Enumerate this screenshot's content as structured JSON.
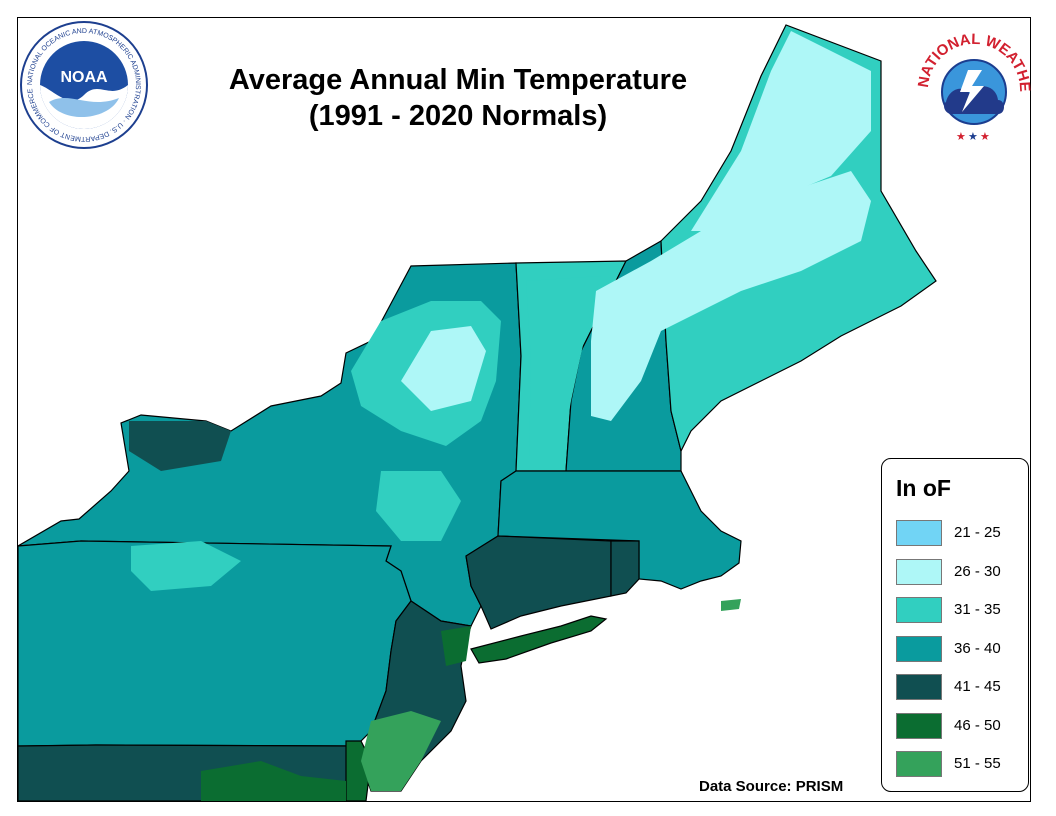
{
  "map": {
    "title_line1": "Average Annual Min Temperature",
    "title_line2": "(1991 - 2020 Normals)",
    "source": "Data Source: PRISM",
    "colors": {
      "ocean": "#ffffff",
      "borders": "#000000",
      "lakes": "#ffffff"
    }
  },
  "legend": {
    "title": "In",
    "unit": "oF",
    "items": [
      {
        "label": "21 - 25",
        "color": "#71d4f5"
      },
      {
        "label": "26 - 30",
        "color": "#aef7f7"
      },
      {
        "label": "31 - 35",
        "color": "#31cfc0"
      },
      {
        "label": "36 - 40",
        "color": "#0a9b9e"
      },
      {
        "label": "41 - 45",
        "color": "#104f51"
      },
      {
        "label": "46 - 50",
        "color": "#0b6d31"
      },
      {
        "label": "51 - 55",
        "color": "#34a25b"
      }
    ]
  },
  "logos": {
    "noaa": {
      "acronym": "NOAA",
      "ring_text": "NATIONAL OCEANIC AND ATMOSPHERIC ADMINISTRATION · U.S. DEPARTMENT OF COMMERCE"
    },
    "nws": {
      "ring_text": "NATIONAL WEATHER SERVICE"
    }
  }
}
